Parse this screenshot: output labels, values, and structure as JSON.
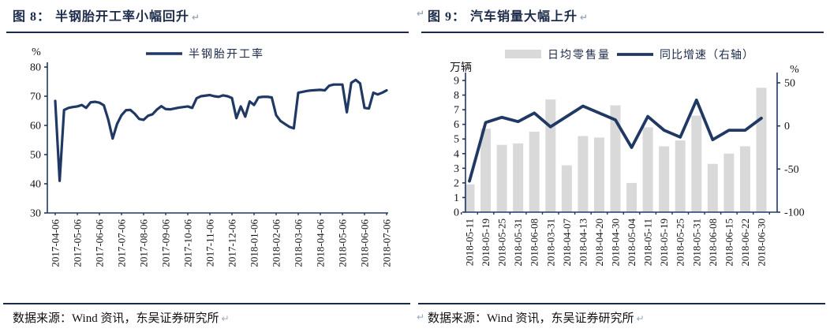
{
  "colors": {
    "navy_line": "#1f3864",
    "axis": "#1f3864",
    "bar_gray": "#d9d9d9",
    "title_text": "#1c2b4a",
    "tick_text": "#141414",
    "legend_text": "#1c2b4a",
    "rule": "#1c2b4a",
    "paragraph_mark": "#9aa9bd",
    "background": "#ffffff"
  },
  "figures": [
    {
      "label": "图 8：",
      "title": "半钢胎开工率小幅回升",
      "source": "数据来源：Wind 资讯，东吴证券研究所",
      "end_mark": "↵"
    },
    {
      "label": "图 9：",
      "title": "汽车销量大幅上升",
      "source": "数据来源：Wind 资讯，东吴证券研究所",
      "end_mark": "↵",
      "lead_mark": "↵"
    }
  ],
  "chart_data": [
    {
      "type": "line",
      "title": "半钢胎开工率小幅回升",
      "ylabel": "%",
      "xlabel": "",
      "ylim": [
        30,
        80
      ],
      "yticks": [
        30,
        40,
        50,
        60,
        70,
        80
      ],
      "grid": false,
      "legend_position": "top",
      "legend": [
        "半钢胎开工率"
      ],
      "x_tick_labels": [
        "2017-04-06",
        "2017-05-06",
        "2017-06-06",
        "2017-07-06",
        "2017-08-06",
        "2017-09-06",
        "2017-10-06",
        "2017-11-06",
        "2017-12-06",
        "2018-01-06",
        "2018-02-06",
        "2018-03-06",
        "2018-04-06",
        "2018-05-06",
        "2018-06-06",
        "2018-07-06"
      ],
      "points_per_x_tick": 5,
      "series": [
        {
          "name": "半钢胎开工率",
          "values": [
            68.4,
            41,
            65.3,
            66,
            66.3,
            66.5,
            67,
            66,
            67.9,
            68.1,
            67.8,
            66.9,
            62,
            55.5,
            60.5,
            63.5,
            65.2,
            65.3,
            64,
            62.2,
            61.9,
            63.3,
            63.8,
            65.4,
            66.6,
            65.6,
            65.5,
            65.8,
            66.1,
            66.3,
            66.5,
            66,
            69.3,
            70,
            70.2,
            70.4,
            70,
            69.8,
            70.3,
            70,
            69.4,
            62.5,
            66.5,
            63,
            68.2,
            67,
            69.6,
            69.8,
            69.8,
            69.6,
            63.5,
            61.5,
            60.5,
            59.5,
            59,
            71.2,
            71.5,
            71.8,
            72,
            72.1,
            72.2,
            72,
            73.6,
            74,
            74,
            74,
            64.5,
            74.6,
            75.6,
            74.4,
            66,
            65.8,
            71.2,
            70.6,
            71.2,
            72
          ]
        }
      ]
    },
    {
      "type": "bar+line",
      "title": "汽车销量大幅上升",
      "ylabel_left": "万辆",
      "ylabel_right": "%",
      "ylim_left": [
        0,
        9
      ],
      "yticks_left": [
        0,
        1,
        2,
        3,
        4,
        5,
        6,
        7,
        8,
        9
      ],
      "ylim_right": [
        -100,
        50
      ],
      "yticks_right": [
        50,
        0,
        -50,
        -100
      ],
      "grid": false,
      "legend_position": "top",
      "categories": [
        "2018-05-11",
        "2018-05-19",
        "2018-05-25",
        "2018-05-31",
        "2018-06-08",
        "2018-03-31",
        "2018-04-07",
        "2018-04-13",
        "2018-04-20",
        "2018-04-30",
        "2018-05-04",
        "2018-05-11",
        "2018-05-19",
        "2018-05-25",
        "2018-05-31",
        "2018-06-08",
        "2018-06-15",
        "2018-06-22",
        "2018-06-30"
      ],
      "series": [
        {
          "name": "日均零售量",
          "type": "bar",
          "axis": "left",
          "values": [
            1.9,
            5.7,
            4.6,
            4.7,
            5.5,
            7.7,
            3.2,
            5.2,
            5.1,
            7.3,
            2.0,
            5.8,
            4.5,
            4.9,
            6.6,
            3.3,
            4.0,
            4.5,
            8.5
          ]
        },
        {
          "name": "同比增速（右轴）",
          "type": "line",
          "axis": "right",
          "values": [
            -64,
            4,
            10,
            5,
            15,
            -1,
            11,
            23,
            15,
            7,
            -25,
            11,
            -5,
            -13,
            30,
            -16,
            -5,
            -5,
            9
          ]
        }
      ]
    }
  ]
}
